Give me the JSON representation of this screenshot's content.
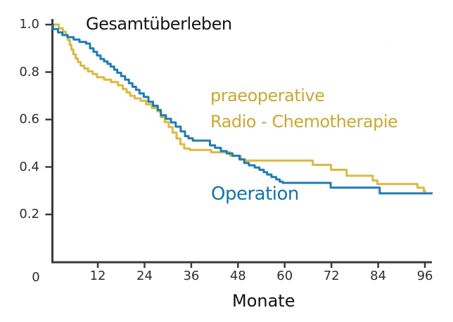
{
  "chart_data": {
    "type": "line",
    "subtype": "kaplan_meier_step_curves",
    "title": "Gesamtüberleben",
    "xlabel": "Monate",
    "ylabel": "",
    "xlim": [
      0,
      98
    ],
    "ylim": [
      0,
      1.0
    ],
    "grid": false,
    "legend_position": "in-plot text annotations",
    "axis_color": "#3a3a3a",
    "x_ticks": [
      {
        "value": 12,
        "label": "12"
      },
      {
        "value": 24,
        "label": "24"
      },
      {
        "value": 36,
        "label": "36"
      },
      {
        "value": 48,
        "label": "48"
      },
      {
        "value": 60,
        "label": "60"
      },
      {
        "value": 72,
        "label": "72"
      },
      {
        "value": 84,
        "label": "84"
      },
      {
        "value": 96,
        "label": "96"
      }
    ],
    "origin_tick_label": "0",
    "y_ticks": [
      {
        "value": 1.0,
        "label": "1.0"
      },
      {
        "value": 0.8,
        "label": "0.8"
      },
      {
        "value": 0.6,
        "label": "0.6"
      },
      {
        "value": 0.4,
        "label": "0.4"
      },
      {
        "value": 0.2,
        "label": "0.2"
      }
    ],
    "series": [
      {
        "name": "praeoperative Radio - Chemotherapie",
        "label_lines": [
          "praeoperative",
          "Radio - Chemotherapie"
        ],
        "curve_color": "#ddb840",
        "label_color": "#c9a832",
        "x_unit": "Monate",
        "y_unit": "survival probability",
        "points": [
          [
            0,
            1.0
          ],
          [
            2.0,
            0.985
          ],
          [
            3.0,
            0.97
          ],
          [
            3.8,
            0.956
          ],
          [
            4.3,
            0.935
          ],
          [
            4.8,
            0.915
          ],
          [
            5.2,
            0.895
          ],
          [
            5.7,
            0.875
          ],
          [
            6.3,
            0.857
          ],
          [
            6.9,
            0.842
          ],
          [
            7.6,
            0.827
          ],
          [
            8.5,
            0.815
          ],
          [
            9.5,
            0.803
          ],
          [
            10.7,
            0.792
          ],
          [
            11.8,
            0.778
          ],
          [
            13.6,
            0.768
          ],
          [
            15.4,
            0.758
          ],
          [
            17.2,
            0.744
          ],
          [
            18.4,
            0.728
          ],
          [
            19.4,
            0.714
          ],
          [
            20.3,
            0.7
          ],
          [
            21.5,
            0.689
          ],
          [
            23.0,
            0.679
          ],
          [
            24.4,
            0.664
          ],
          [
            25.9,
            0.649
          ],
          [
            27.3,
            0.634
          ],
          [
            28.2,
            0.61
          ],
          [
            29.2,
            0.589
          ],
          [
            30.2,
            0.568
          ],
          [
            31.2,
            0.545
          ],
          [
            32.2,
            0.52
          ],
          [
            33.2,
            0.496
          ],
          [
            34.2,
            0.478
          ],
          [
            35.6,
            0.472
          ],
          [
            41.1,
            0.462
          ],
          [
            46.0,
            0.447
          ],
          [
            48.7,
            0.432
          ],
          [
            49.9,
            0.427
          ],
          [
            67.2,
            0.409
          ],
          [
            71.9,
            0.388
          ],
          [
            75.9,
            0.363
          ],
          [
            82.6,
            0.343
          ],
          [
            83.8,
            0.328
          ],
          [
            94.1,
            0.313
          ],
          [
            95.7,
            0.298
          ],
          [
            96.3,
            0.298
          ]
        ]
      },
      {
        "name": "Operation",
        "label_lines": [
          "Operation"
        ],
        "curve_color": "#1d7db2",
        "label_color": "#1374a6",
        "x_unit": "Monate",
        "y_unit": "survival probability",
        "points": [
          [
            0,
            1.0
          ],
          [
            0.5,
            0.981
          ],
          [
            1.8,
            0.967
          ],
          [
            2.9,
            0.956
          ],
          [
            4.2,
            0.947
          ],
          [
            5.8,
            0.937
          ],
          [
            7.3,
            0.927
          ],
          [
            9.0,
            0.92
          ],
          [
            10.0,
            0.9
          ],
          [
            10.9,
            0.885
          ],
          [
            11.8,
            0.87
          ],
          [
            12.7,
            0.855
          ],
          [
            13.6,
            0.845
          ],
          [
            14.5,
            0.835
          ],
          [
            15.3,
            0.823
          ],
          [
            16.2,
            0.81
          ],
          [
            17.0,
            0.797
          ],
          [
            18.0,
            0.783
          ],
          [
            19.0,
            0.768
          ],
          [
            20.0,
            0.753
          ],
          [
            20.9,
            0.738
          ],
          [
            21.8,
            0.725
          ],
          [
            22.7,
            0.71
          ],
          [
            23.8,
            0.695
          ],
          [
            25.0,
            0.675
          ],
          [
            26.2,
            0.658
          ],
          [
            27.4,
            0.64
          ],
          [
            28.2,
            0.618
          ],
          [
            29.5,
            0.603
          ],
          [
            30.8,
            0.588
          ],
          [
            32.0,
            0.57
          ],
          [
            33.3,
            0.55
          ],
          [
            34.4,
            0.53
          ],
          [
            35.3,
            0.521
          ],
          [
            36.4,
            0.511
          ],
          [
            40.8,
            0.491
          ],
          [
            42.1,
            0.481
          ],
          [
            43.6,
            0.467
          ],
          [
            45.1,
            0.457
          ],
          [
            46.6,
            0.447
          ],
          [
            48.4,
            0.432
          ],
          [
            49.6,
            0.417
          ],
          [
            50.8,
            0.407
          ],
          [
            52.3,
            0.398
          ],
          [
            53.5,
            0.388
          ],
          [
            54.6,
            0.378
          ],
          [
            55.5,
            0.368
          ],
          [
            56.6,
            0.358
          ],
          [
            57.8,
            0.348
          ],
          [
            58.7,
            0.338
          ],
          [
            59.5,
            0.333
          ],
          [
            71.8,
            0.313
          ],
          [
            84.4,
            0.289
          ],
          [
            98.0,
            0.289
          ]
        ]
      }
    ]
  },
  "artifact": {
    "glyph": "·"
  }
}
